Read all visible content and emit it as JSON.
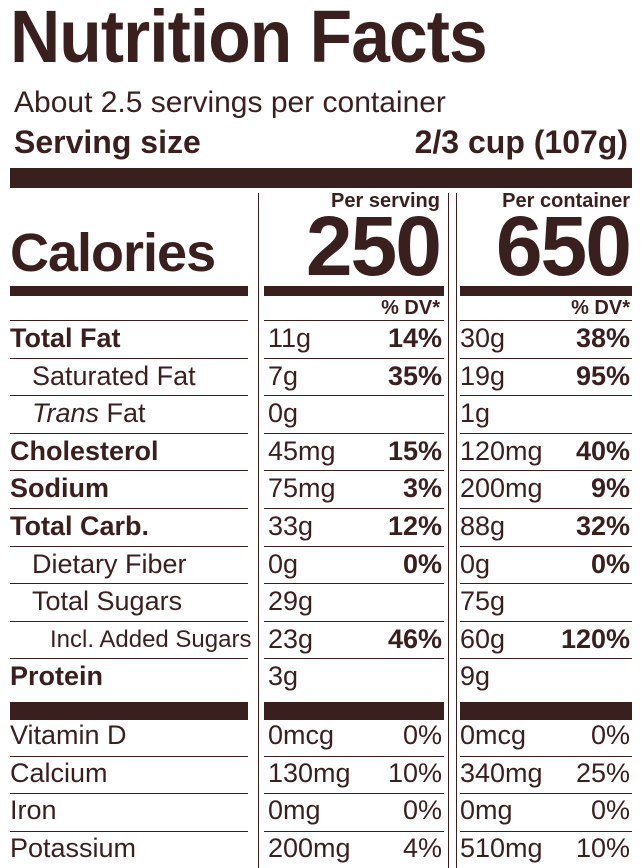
{
  "title": "Nutrition Facts",
  "servings_per_container": "About 2.5 servings per container",
  "serving_size_label": "Serving size",
  "serving_size_value": "2/3 cup (107g)",
  "per_serving_label": "Per serving",
  "per_container_label": "Per container",
  "calories_label": "Calories",
  "calories_per_serving": "250",
  "calories_per_container": "650",
  "dv_label": "% DV*",
  "nutrients": [
    {
      "name": "Total Fat",
      "serving": "11g",
      "serving_dv": "14%",
      "container": "30g",
      "container_dv": "38%"
    },
    {
      "name": "Saturated Fat",
      "serving": "7g",
      "serving_dv": "35%",
      "container": "19g",
      "container_dv": "95%"
    },
    {
      "name_italic": "Trans",
      "name_rest": " Fat",
      "serving": "0g",
      "serving_dv": "",
      "container": "1g",
      "container_dv": ""
    },
    {
      "name": "Cholesterol",
      "serving": "45mg",
      "serving_dv": "15%",
      "container": "120mg",
      "container_dv": "40%"
    },
    {
      "name": "Sodium",
      "serving": "75mg",
      "serving_dv": "3%",
      "container": "200mg",
      "container_dv": "9%"
    },
    {
      "name": "Total Carb.",
      "serving": "33g",
      "serving_dv": "12%",
      "container": "88g",
      "container_dv": "32%"
    },
    {
      "name": "Dietary Fiber",
      "serving": "0g",
      "serving_dv": "0%",
      "container": "0g",
      "container_dv": "0%"
    },
    {
      "name": "Total Sugars",
      "serving": "29g",
      "serving_dv": "",
      "container": "75g",
      "container_dv": ""
    },
    {
      "name": "Incl. Added Sugars",
      "serving": "23g",
      "serving_dv": "46%",
      "container": "60g",
      "container_dv": "120%"
    },
    {
      "name": "Protein",
      "serving": "3g",
      "serving_dv": "",
      "container": "9g",
      "container_dv": ""
    }
  ],
  "vitamins": [
    {
      "name": "Vitamin D",
      "serving": "0mcg",
      "serving_dv": "0%",
      "container": "0mcg",
      "container_dv": "0%"
    },
    {
      "name": "Calcium",
      "serving": "130mg",
      "serving_dv": "10%",
      "container": "340mg",
      "container_dv": "25%"
    },
    {
      "name": "Iron",
      "serving": "0mg",
      "serving_dv": "0%",
      "container": "0mg",
      "container_dv": "0%"
    },
    {
      "name": "Potassium",
      "serving": "200mg",
      "serving_dv": "4%",
      "container": "510mg",
      "container_dv": "10%"
    }
  ],
  "colors": {
    "ink": "#3a1f1f",
    "background": "#ffffff"
  }
}
